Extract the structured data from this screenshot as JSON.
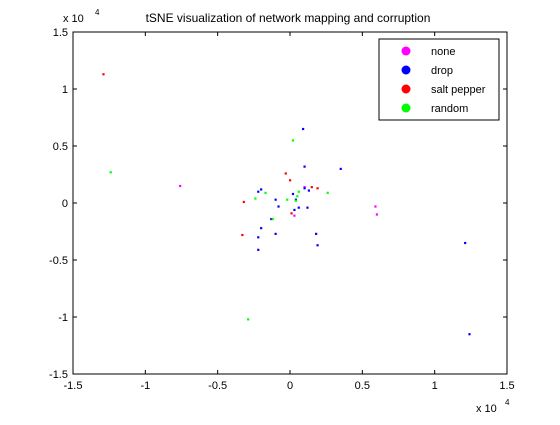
{
  "chart_data": {
    "type": "scatter",
    "title": "tSNE visualization of network mapping and corruption",
    "xlabel": "",
    "ylabel": "",
    "x_scale_label": "x 10",
    "x_scale_exp": "4",
    "y_scale_label": "x 10",
    "y_scale_exp": "4",
    "xlim": [
      -1.5,
      1.5
    ],
    "ylim": [
      -1.5,
      1.5
    ],
    "x_ticks": [
      "-1.5",
      "-1",
      "-0.5",
      "0",
      "0.5",
      "1",
      "1.5"
    ],
    "y_ticks": [
      "1.5",
      "1",
      "0.5",
      "0",
      "-0.5",
      "-1",
      "-1.5"
    ],
    "x_tick_values": [
      -1.5,
      -1,
      -0.5,
      0,
      0.5,
      1,
      1.5
    ],
    "y_tick_values": [
      1.5,
      1,
      0.5,
      0,
      -0.5,
      -1,
      -1.5
    ],
    "grid": false,
    "legend_position": "top-right",
    "series": [
      {
        "name": "none",
        "color": "#ff00ff",
        "points": [
          [
            -0.76,
            0.15
          ],
          [
            0.59,
            -0.03
          ],
          [
            0.6,
            -0.1
          ],
          [
            0.03,
            -0.11
          ],
          [
            0.1,
            0.14
          ]
        ]
      },
      {
        "name": "drop",
        "color": "#0000ff",
        "points": [
          [
            0.09,
            0.65
          ],
          [
            0.35,
            0.3
          ],
          [
            0.1,
            0.32
          ],
          [
            -0.2,
            0.12
          ],
          [
            -0.22,
            0.1
          ],
          [
            -0.1,
            0.03
          ],
          [
            -0.08,
            -0.03
          ],
          [
            -0.1,
            -0.27
          ],
          [
            -0.2,
            -0.22
          ],
          [
            -0.22,
            -0.3
          ],
          [
            -0.22,
            -0.41
          ],
          [
            -0.13,
            -0.14
          ],
          [
            0.03,
            -0.06
          ],
          [
            0.06,
            -0.04
          ],
          [
            0.1,
            0.13
          ],
          [
            0.13,
            0.11
          ],
          [
            0.12,
            -0.04
          ],
          [
            0.18,
            -0.27
          ],
          [
            0.19,
            -0.37
          ],
          [
            0.02,
            0.08
          ],
          [
            0.04,
            0.03
          ],
          [
            1.21,
            -0.35
          ],
          [
            1.24,
            -1.15
          ]
        ]
      },
      {
        "name": "salt pepper",
        "color": "#ff0000",
        "points": [
          [
            -1.29,
            1.13
          ],
          [
            -0.32,
            0.01
          ],
          [
            -0.33,
            -0.28
          ],
          [
            -0.03,
            0.26
          ],
          [
            0.0,
            0.2
          ],
          [
            0.15,
            0.14
          ],
          [
            0.19,
            0.13
          ],
          [
            0.01,
            -0.09
          ]
        ]
      },
      {
        "name": "random",
        "color": "#00ff00",
        "points": [
          [
            -1.24,
            0.27
          ],
          [
            0.02,
            0.55
          ],
          [
            -0.29,
            -1.02
          ],
          [
            -0.24,
            0.04
          ],
          [
            -0.17,
            0.09
          ],
          [
            -0.12,
            -0.14
          ],
          [
            0.05,
            0.06
          ],
          [
            0.04,
            0.02
          ],
          [
            0.26,
            0.09
          ],
          [
            -0.02,
            0.03
          ],
          [
            0.06,
            0.1
          ]
        ]
      }
    ]
  }
}
